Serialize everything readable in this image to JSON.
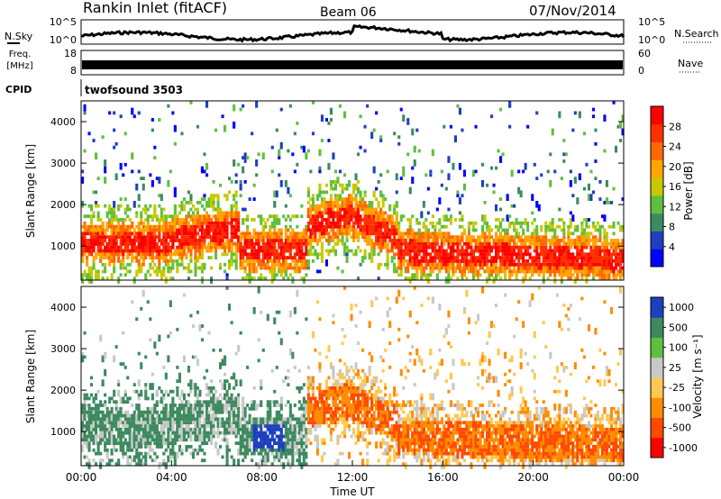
{
  "header": {
    "title": "Rankin Inlet (fitACF)",
    "beam": "Beam 06",
    "date": "07/Nov/2014"
  },
  "noise_panel": {
    "left_label": "N.Sky",
    "left_ticks": [
      "10^5",
      "10^0"
    ],
    "right_label": "N.Search",
    "right_ticks": [
      "10^5",
      "10^0"
    ]
  },
  "freq_panel": {
    "left_label_1": "Freq.",
    "left_label_2": "[MHz]",
    "left_ticks": [
      "18",
      "8"
    ],
    "right_label": "Nave",
    "right_ticks": [
      "60",
      "0"
    ]
  },
  "cpid": {
    "label": "CPID",
    "value": "twofsound 3503"
  },
  "colors": {
    "power": [
      "#0000ff",
      "#1f3fbf",
      "#3d8a5f",
      "#5fbf3f",
      "#c8c800",
      "#ffa500",
      "#ff6a00",
      "#ff3000",
      "#ff0000"
    ],
    "velocity": [
      "#ff0000",
      "#ff4a00",
      "#ff8c00",
      "#ffc850",
      "#c8c8c8",
      "#5fbf3f",
      "#3d8a5f",
      "#1f3fbf"
    ]
  },
  "chart_data": [
    {
      "type": "heatmap",
      "name": "power",
      "ylabel": "Slant Range [km]",
      "yticks": [
        "4000",
        "3000",
        "2000",
        "1000"
      ],
      "ylim": [
        180,
        4500
      ],
      "xlim": [
        "00:00",
        "24:00"
      ],
      "colorbar_label": "Power [dB]",
      "colorbar_ticks": [
        "28",
        "24",
        "20",
        "16",
        "12",
        "8",
        "4"
      ],
      "colorbar_range": [
        0,
        32
      ]
    },
    {
      "type": "heatmap",
      "name": "velocity",
      "ylabel": "Slant Range [km]",
      "yticks": [
        "4000",
        "3000",
        "2000",
        "1000"
      ],
      "ylim": [
        180,
        4500
      ],
      "xlim": [
        "00:00",
        "24:00"
      ],
      "xticks": [
        "00:00",
        "04:00",
        "08:00",
        "12:00",
        "16:00",
        "20:00",
        "00:00"
      ],
      "xlabel": "Time UT",
      "colorbar_label": "Velocity [m s⁻¹]",
      "colorbar_ticks": [
        "1000",
        "500",
        "100",
        "25",
        "-25",
        "-100",
        "-500",
        "-1000"
      ]
    }
  ]
}
